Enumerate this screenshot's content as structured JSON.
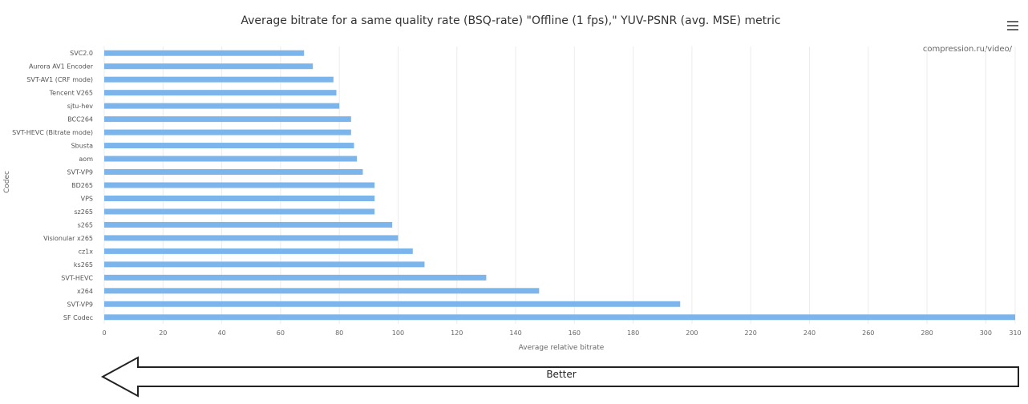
{
  "chart_data": {
    "type": "bar",
    "orientation": "horizontal",
    "title": "Average bitrate for a same quality rate (BSQ-rate) \"Offline (1 fps),\" YUV-PSNR (avg. MSE) metric",
    "watermark": "compression.ru/video/",
    "xlabel": "Average relative bitrate",
    "ylabel": "Codec",
    "xlim": [
      0,
      310
    ],
    "xticks": [
      0,
      20,
      40,
      60,
      80,
      100,
      120,
      140,
      160,
      180,
      200,
      220,
      240,
      260,
      280,
      300,
      310
    ],
    "categories": [
      "SVC2.0",
      "Aurora AV1 Encoder",
      "SVT-AV1 (CRF mode)",
      "Tencent V265",
      "sjtu-hev",
      "BCC264",
      "SVT-HEVC (Bitrate mode)",
      "Sbusta",
      "aom",
      "SVT-VP9",
      "BD265",
      "VPS",
      "sz265",
      "s265",
      "Visionular x265",
      "cz1x",
      "ks265",
      "SVT-HEVC",
      "x264",
      "SVT-VP9",
      "SF Codec"
    ],
    "values": [
      68,
      71,
      78,
      79,
      80,
      84,
      84,
      85,
      86,
      88,
      92,
      92,
      92,
      98,
      100,
      105,
      109,
      130,
      148,
      196,
      312
    ],
    "bar_color": "#7cb5ec",
    "grid": true
  },
  "annotation": {
    "better_label": "Better"
  }
}
